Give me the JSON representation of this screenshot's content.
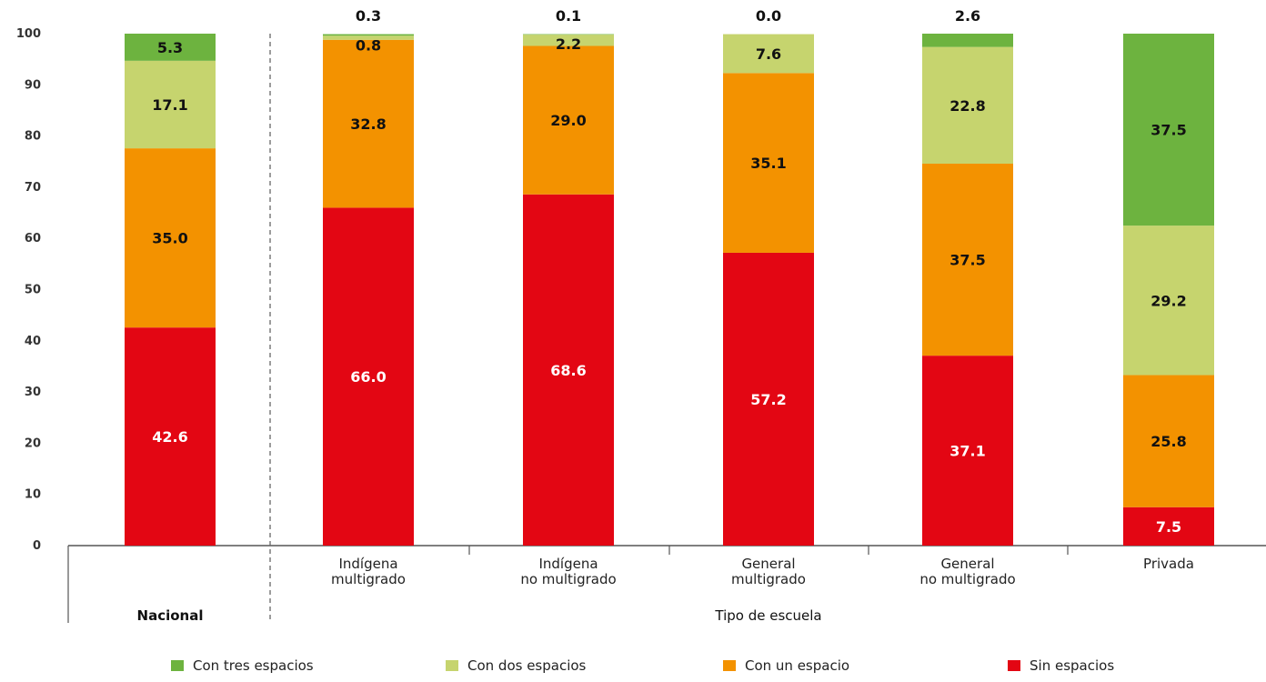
{
  "chart_data": {
    "type": "bar",
    "stacked": true,
    "ylim": [
      0,
      100
    ],
    "yticks": [
      0,
      10,
      20,
      30,
      40,
      50,
      60,
      70,
      80,
      90,
      100
    ],
    "categories": [
      [
        "",
        "Nacional"
      ],
      [
        "Indígena",
        "multigrado"
      ],
      [
        "Indígena",
        "no multigrado"
      ],
      [
        "General",
        "multigrado"
      ],
      [
        "General",
        "no multigrado"
      ],
      [
        "Privada"
      ]
    ],
    "groups": [
      {
        "label": "Nacional",
        "categories": [
          0
        ]
      },
      {
        "label": "Tipo de escuela",
        "categories": [
          1,
          2,
          3,
          4,
          5
        ]
      }
    ],
    "series": [
      {
        "name": "Sin espacios",
        "color": "#e30613",
        "label_color": "#ffffff",
        "values": [
          42.6,
          66.0,
          68.6,
          57.2,
          37.1,
          7.5
        ],
        "labels": [
          "42.6",
          "66.0",
          "68.6",
          "57.2",
          "37.1",
          "7.5"
        ]
      },
      {
        "name": "Con un espacio",
        "color": "#f39200",
        "label_color": "#111111",
        "values": [
          35.0,
          32.8,
          29.0,
          35.1,
          37.5,
          25.8
        ],
        "labels": [
          "35.0",
          "32.8",
          "29.0",
          "35.1",
          "37.5",
          "25.8"
        ]
      },
      {
        "name": "Con dos espacios",
        "color": "#c6d46e",
        "label_color": "#111111",
        "values": [
          17.1,
          0.8,
          2.2,
          7.6,
          22.8,
          29.2
        ],
        "labels": [
          "17.1",
          "0.8",
          "2.2",
          "7.6",
          "22.8",
          "29.2"
        ]
      },
      {
        "name": "Con tres espacios",
        "color": "#6db33f",
        "label_color": "#111111",
        "values": [
          5.3,
          0.3,
          0.1,
          0.0,
          2.6,
          37.5
        ],
        "labels": [
          "5.3",
          "0.3",
          "0.1",
          "0.0",
          "2.6",
          "37.5"
        ]
      }
    ],
    "legend_order": [
      "Con tres espacios",
      "Con dos espacios",
      "Con un espacio",
      "Sin espacios"
    ],
    "legend_position": "bottom",
    "grid": false
  }
}
